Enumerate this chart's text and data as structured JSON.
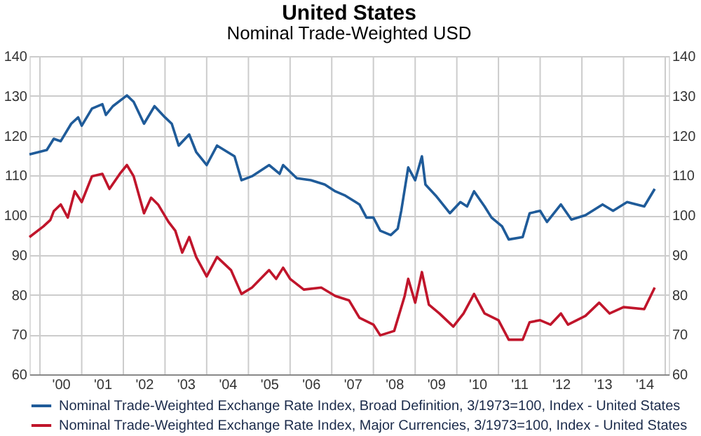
{
  "chart_data": {
    "type": "line",
    "title": "United States",
    "subtitle": "Nominal Trade-Weighted USD",
    "xlim": [
      "1999-10",
      "2015-02"
    ],
    "xticks": [
      {
        "value": "2000-01",
        "label": null
      },
      {
        "value": "2001-01",
        "label": null
      },
      {
        "value": "2002-01",
        "label": null
      },
      {
        "value": "2003-01",
        "label": null
      },
      {
        "value": "2004-01",
        "label": null
      },
      {
        "value": "2005-01",
        "label": null
      },
      {
        "value": "2006-01",
        "label": null
      },
      {
        "value": "2007-01",
        "label": null
      },
      {
        "value": "2008-01",
        "label": null
      },
      {
        "value": "2009-01",
        "label": null
      },
      {
        "value": "2010-01",
        "label": null
      },
      {
        "value": "2011-01",
        "label": null
      },
      {
        "value": "2012-01",
        "label": null
      },
      {
        "value": "2013-01",
        "label": null
      },
      {
        "value": "2014-01",
        "label": null
      },
      {
        "value": "2015-01",
        "label": null
      },
      {
        "value": "2000-07",
        "label": "'00"
      },
      {
        "value": "2001-07",
        "label": "'01"
      },
      {
        "value": "2002-07",
        "label": "'02"
      },
      {
        "value": "2003-07",
        "label": "'03"
      },
      {
        "value": "2004-07",
        "label": "'04"
      },
      {
        "value": "2005-07",
        "label": "'05"
      },
      {
        "value": "2006-07",
        "label": "'06"
      },
      {
        "value": "2007-07",
        "label": "'07"
      },
      {
        "value": "2008-07",
        "label": "'08"
      },
      {
        "value": "2009-07",
        "label": "'09"
      },
      {
        "value": "2010-07",
        "label": "'10"
      },
      {
        "value": "2011-07",
        "label": "'11"
      },
      {
        "value": "2012-07",
        "label": "'12"
      },
      {
        "value": "2013-07",
        "label": "'13"
      },
      {
        "value": "2014-07",
        "label": "'14"
      }
    ],
    "ylim": [
      60,
      140
    ],
    "yticks": [
      60,
      70,
      80,
      90,
      100,
      110,
      120,
      130,
      140
    ],
    "y2lim": [
      60,
      140
    ],
    "y2ticks": [
      60,
      70,
      80,
      90,
      100,
      110,
      120,
      130,
      140
    ],
    "grid": true,
    "legend": "bottom",
    "marker": "none",
    "line_style": "solid",
    "series": [
      {
        "name": "Nominal Trade-Weighted Exchange Rate Index, Broad Definition, 3/1973=100, Index - United States",
        "color": "#1f5b99",
        "x": [
          "1999-10",
          "2000-03",
          "2000-05",
          "2000-07",
          "2000-10",
          "2000-12",
          "2001-01",
          "2001-04",
          "2001-07",
          "2001-08",
          "2001-10",
          "2002-02",
          "2002-04",
          "2002-07",
          "2002-10",
          "2003-01",
          "2003-03",
          "2003-05",
          "2003-08",
          "2003-10",
          "2004-01",
          "2004-04",
          "2004-09",
          "2004-11",
          "2005-02",
          "2005-07",
          "2005-10",
          "2005-11",
          "2006-03",
          "2006-07",
          "2006-11",
          "2007-02",
          "2007-05",
          "2007-09",
          "2007-11",
          "2008-01",
          "2008-03",
          "2008-06",
          "2008-08",
          "2008-09",
          "2008-11",
          "2009-01",
          "2009-03",
          "2009-04",
          "2009-07",
          "2009-11",
          "2010-02",
          "2010-04",
          "2010-06",
          "2010-09",
          "2010-11",
          "2011-02",
          "2011-04",
          "2011-08",
          "2011-10",
          "2012-01",
          "2012-03",
          "2012-07",
          "2012-10",
          "2013-02",
          "2013-07",
          "2013-10",
          "2014-02",
          "2014-07",
          "2014-10"
        ],
        "values": [
          115.3,
          116.4,
          119.2,
          118.6,
          123,
          124.6,
          122.5,
          126.8,
          127.9,
          125.2,
          127.4,
          130.1,
          128.5,
          123,
          127.4,
          124.6,
          123,
          117.5,
          120.3,
          115.9,
          112.6,
          117.5,
          114.8,
          108.8,
          109.8,
          112.6,
          110.4,
          112.6,
          109.3,
          108.8,
          107.7,
          106,
          104.9,
          102.7,
          99.4,
          99.4,
          96.1,
          95,
          96.6,
          101.1,
          112,
          108.8,
          114.8,
          107.7,
          104.9,
          100.5,
          103.3,
          102.2,
          106,
          102.2,
          99.4,
          97.2,
          93.9,
          94.5,
          100.5,
          101.1,
          98.3,
          102.7,
          98.9,
          100,
          102.7,
          101.1,
          103.3,
          102.2,
          106.6
        ]
      },
      {
        "name": "Nominal Trade-Weighted Exchange Rate Index, Major Currencies, 3/1973=100, Index - United States",
        "color": "#c0152b",
        "x": [
          "1999-10",
          "2000-02",
          "2000-04",
          "2000-05",
          "2000-07",
          "2000-09",
          "2000-11",
          "2001-01",
          "2001-04",
          "2001-07",
          "2001-09",
          "2001-12",
          "2002-02",
          "2002-04",
          "2002-07",
          "2002-09",
          "2002-11",
          "2003-02",
          "2003-04",
          "2003-06",
          "2003-08",
          "2003-10",
          "2004-01",
          "2004-04",
          "2004-08",
          "2004-11",
          "2005-02",
          "2005-07",
          "2005-09",
          "2005-11",
          "2006-01",
          "2006-05",
          "2006-10",
          "2007-02",
          "2007-06",
          "2007-09",
          "2008-01",
          "2008-03",
          "2008-07",
          "2008-10",
          "2008-11",
          "2009-01",
          "2009-03",
          "2009-05",
          "2009-08",
          "2009-12",
          "2010-03",
          "2010-06",
          "2010-09",
          "2011-01",
          "2011-04",
          "2011-08",
          "2011-10",
          "2012-01",
          "2012-04",
          "2012-07",
          "2012-09",
          "2013-02",
          "2013-06",
          "2013-09",
          "2014-01",
          "2014-07",
          "2014-10"
        ],
        "values": [
          94.5,
          97.2,
          98.8,
          101,
          102.7,
          99.4,
          106,
          103.3,
          109.8,
          110.4,
          106.6,
          110.4,
          112.6,
          109.8,
          100.5,
          104.4,
          102.7,
          98.3,
          96.1,
          90.6,
          94.5,
          89.5,
          84.6,
          89.5,
          86.2,
          80.2,
          81.8,
          86.2,
          84,
          86.8,
          84,
          81.3,
          81.8,
          79.7,
          78.6,
          74.2,
          72.5,
          69.8,
          70.9,
          79.7,
          84,
          78,
          85.7,
          77.5,
          75.3,
          72,
          75.3,
          80.2,
          75.3,
          73.6,
          68.7,
          68.7,
          73.1,
          73.6,
          72.5,
          75.3,
          72.5,
          74.7,
          78,
          75.3,
          76.9,
          76.4,
          81.8
        ]
      }
    ]
  }
}
